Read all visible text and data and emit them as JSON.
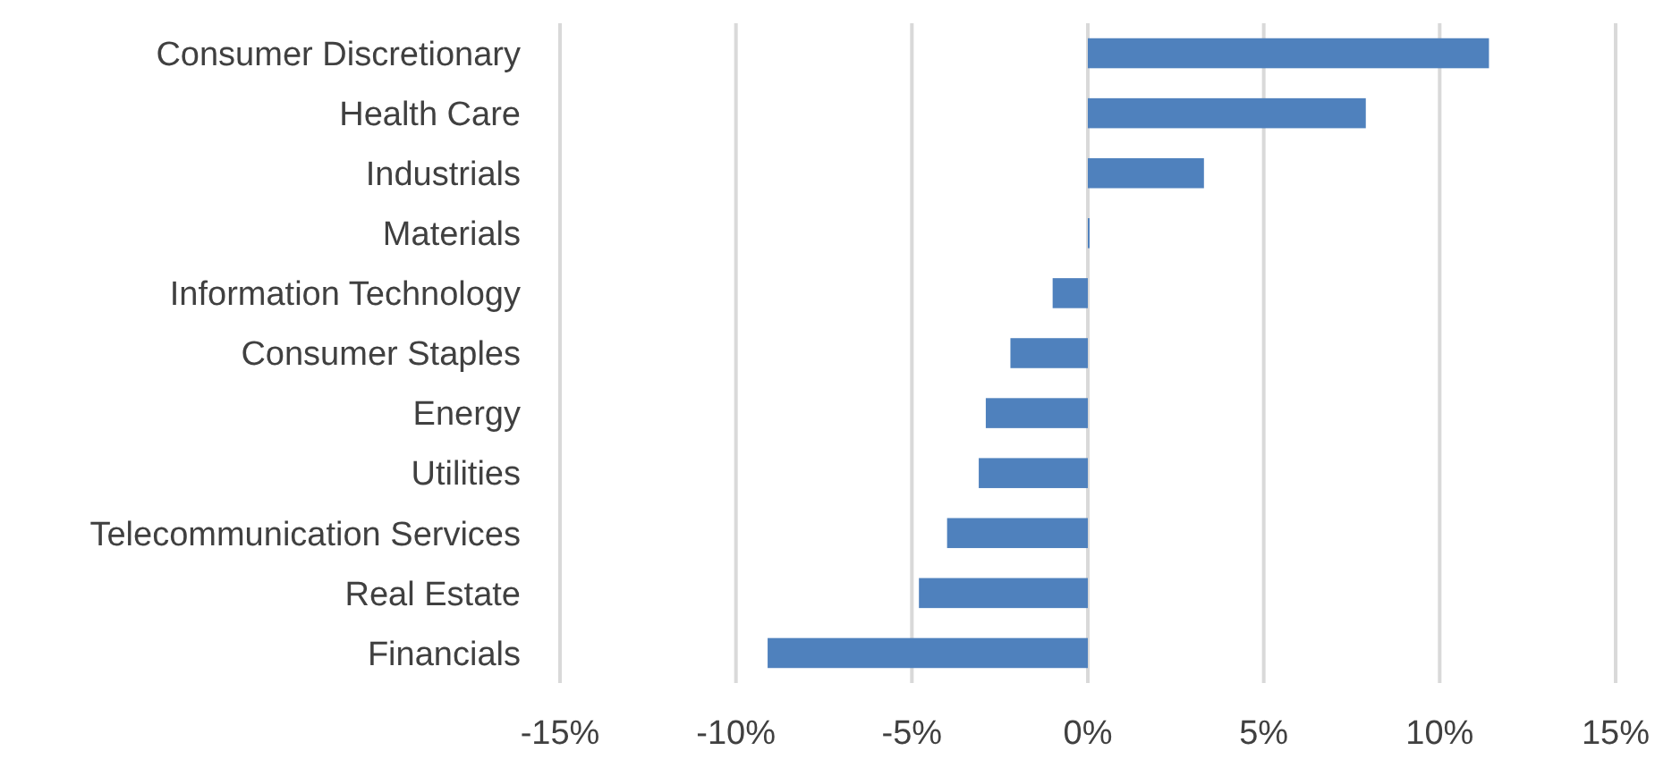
{
  "chart_data": {
    "type": "bar",
    "orientation": "horizontal",
    "categories": [
      "Consumer Discretionary",
      "Health Care",
      "Industrials",
      "Materials",
      "Information Technology",
      "Consumer Staples",
      "Energy",
      "Utilities",
      "Telecommunication Services",
      "Real Estate",
      "Financials"
    ],
    "values": [
      11.4,
      7.9,
      3.3,
      0.05,
      -1.0,
      -2.2,
      -2.9,
      -3.1,
      -4.0,
      -4.8,
      -9.1
    ],
    "color": "#4f81bd",
    "xlim": [
      -15,
      15
    ],
    "xticks": [
      {
        "value": -15,
        "label": "-15%"
      },
      {
        "value": -10,
        "label": "-10%"
      },
      {
        "value": -5,
        "label": "-5%"
      },
      {
        "value": 0,
        "label": "0%"
      },
      {
        "value": 5,
        "label": "5%"
      },
      {
        "value": 10,
        "label": "10%"
      },
      {
        "value": 15,
        "label": "15%"
      }
    ],
    "grid": "x"
  }
}
